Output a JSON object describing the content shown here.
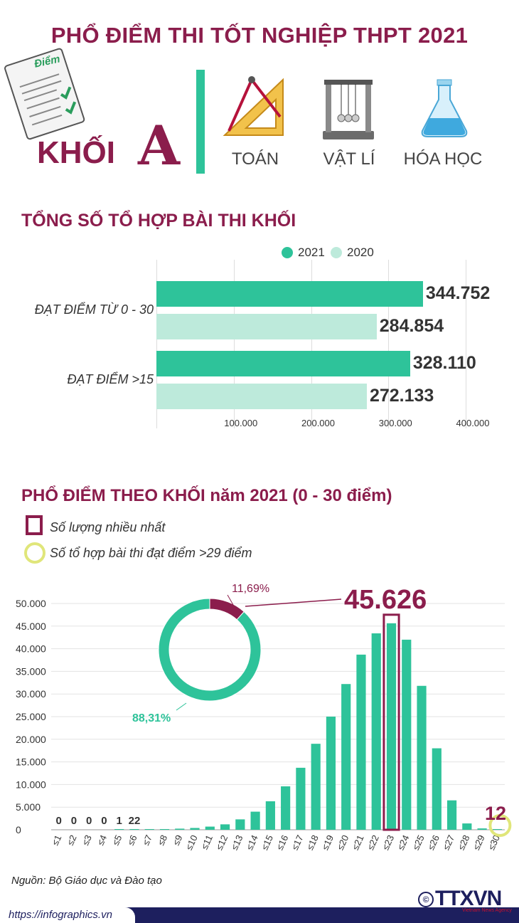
{
  "title": "PHỔ ĐIỂM THI TỐT NGHIỆP THPT 2021",
  "paper_icon_text": "Điểm",
  "khoi": {
    "label": "KHỐI",
    "letter": "A"
  },
  "subjects": [
    "TOÁN",
    "VẬT LÍ",
    "HÓA HỌC"
  ],
  "section1": {
    "title": "TỔNG SỐ TỔ HỢP BÀI THI KHỐI",
    "legend": [
      "2021",
      "2020"
    ]
  },
  "section2": {
    "title": "PHỔ ĐIỂM THEO KHỐI năm 2021 (0 - 30 điểm)",
    "legend": [
      "Số lượng nhiều nhất",
      "Số tổ hợp bài thi đạt điểm >29 điểm"
    ],
    "highlight_value": "45.626",
    "highlight_small": "12",
    "donut_labels": [
      "11,69%",
      "88,31%"
    ]
  },
  "chart_data": [
    {
      "type": "bar",
      "orientation": "horizontal",
      "categories": [
        "ĐẠT ĐIỂM TỪ 0 - 30",
        "ĐẠT ĐIỂM >15"
      ],
      "series": [
        {
          "name": "2021",
          "values": [
            344752,
            328110
          ],
          "labels": [
            "344.752",
            "328.110"
          ]
        },
        {
          "name": "2020",
          "values": [
            284854,
            272133
          ],
          "labels": [
            "284.854",
            "272.133"
          ]
        }
      ],
      "xlim": [
        0,
        400000
      ],
      "xticks": [
        100000,
        200000,
        300000,
        400000
      ],
      "xtick_labels": [
        "100.000",
        "200.000",
        "300.000",
        "400.000"
      ],
      "legend_position": "top",
      "colors": {
        "2021": "#2ec39a",
        "2020": "#bdeadb"
      }
    },
    {
      "type": "bar",
      "categories": [
        "≤1",
        "≤2",
        "≤3",
        "≤4",
        "≤5",
        "≤6",
        "≤7",
        "≤8",
        "≤9",
        "≤10",
        "≤11",
        "≤12",
        "≤13",
        "≤14",
        "≤15",
        "≤16",
        "≤17",
        "≤18",
        "≤19",
        "≤20",
        "≤21",
        "≤22",
        "≤23",
        "≤24",
        "≤25",
        "≤26",
        "≤27",
        "≤28",
        "≤29",
        "≤30"
      ],
      "values": [
        0,
        0,
        0,
        0,
        1,
        22,
        80,
        150,
        250,
        400,
        700,
        1200,
        2300,
        4000,
        6300,
        9600,
        13700,
        19000,
        25000,
        32200,
        38700,
        43400,
        45626,
        42000,
        31800,
        18000,
        6500,
        1400,
        300,
        12
      ],
      "data_labels": {
        "0": "0",
        "1": "0",
        "2": "0",
        "3": "0",
        "4": "1",
        "5": "22"
      },
      "ylim": [
        0,
        50000
      ],
      "yticks": [
        0,
        5000,
        10000,
        15000,
        20000,
        25000,
        30000,
        35000,
        40000,
        45000,
        50000
      ],
      "ytick_labels": [
        "0",
        "5.000",
        "10.000",
        "15.000",
        "20.000",
        "25.000",
        "30.000",
        "35.000",
        "40.000",
        "45.000",
        "50.000"
      ],
      "highlight_index": 22,
      "highlight_small_index": 29,
      "grid": true,
      "color": "#2ec39a",
      "highlight_color": "#8b1d4c"
    },
    {
      "type": "pie",
      "donut": true,
      "values": [
        11.69,
        88.31
      ],
      "labels": [
        "11,69%",
        "88,31%"
      ],
      "colors": [
        "#8b1d4c",
        "#2ec39a"
      ]
    }
  ]
}
